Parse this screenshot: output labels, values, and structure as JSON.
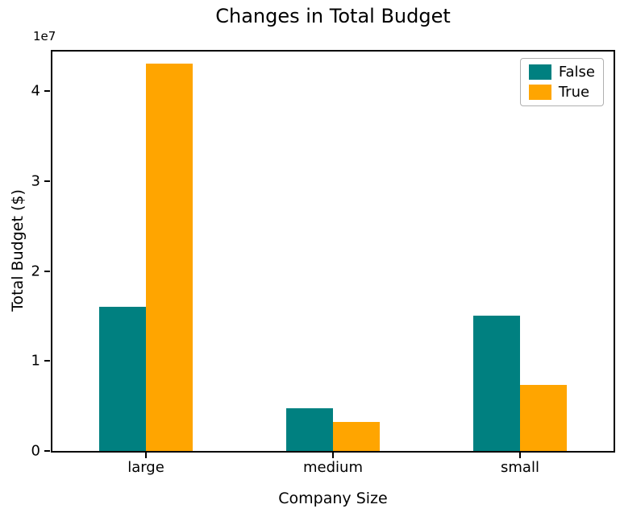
{
  "chart_data": {
    "type": "bar",
    "title": "Changes in Total Budget",
    "xlabel": "Company Size",
    "ylabel": "Total Budget ($)",
    "y_axis_offset_label": "1e7",
    "categories": [
      "large",
      "medium",
      "small"
    ],
    "series": [
      {
        "name": "False",
        "color": "#008080",
        "values": [
          16000000,
          4700000,
          15000000
        ]
      },
      {
        "name": "True",
        "color": "#FFA500",
        "values": [
          43000000,
          3200000,
          7300000
        ]
      }
    ],
    "ylim": [
      0,
      45000000
    ],
    "yticks": [
      0,
      10000000,
      20000000,
      30000000,
      40000000
    ],
    "ytick_labels": [
      "0",
      "1",
      "2",
      "3",
      "4"
    ],
    "grid": false,
    "legend": {
      "position": "upper right",
      "entries": [
        "False",
        "True"
      ]
    }
  }
}
